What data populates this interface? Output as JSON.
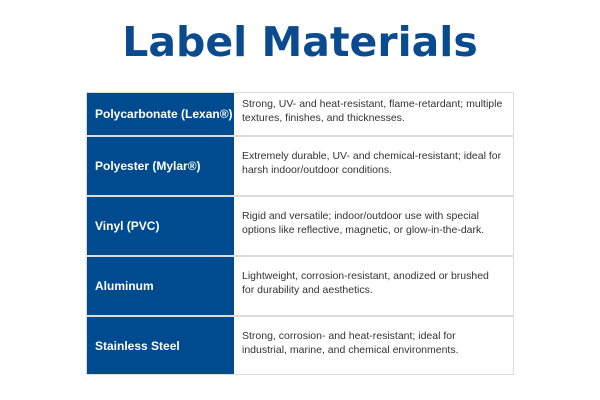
{
  "title": "Label Materials",
  "colors": {
    "title": "#0a4a8f",
    "material_cell": "#004a8f"
  },
  "rows": [
    {
      "material": "Polycarbonate (Lexan®)",
      "description": "Strong, UV- and heat-resistant, flame-retardant; multiple textures, finishes, and thicknesses."
    },
    {
      "material": "Polyester (Mylar®)",
      "description": "Extremely durable, UV- and chemical-resistant; ideal for harsh indoor/outdoor conditions."
    },
    {
      "material": "Vinyl (PVC)",
      "description": "Rigid and versatile; indoor/outdoor use with special options like reflective, magnetic, or glow-in-the-dark."
    },
    {
      "material": "Aluminum",
      "description": "Lightweight, corrosion-resistant, anodized or brushed for durability and aesthetics."
    },
    {
      "material": "Stainless Steel",
      "description": "Strong, corrosion- and heat-resistant; ideal for industrial, marine, and chemical environments."
    }
  ]
}
